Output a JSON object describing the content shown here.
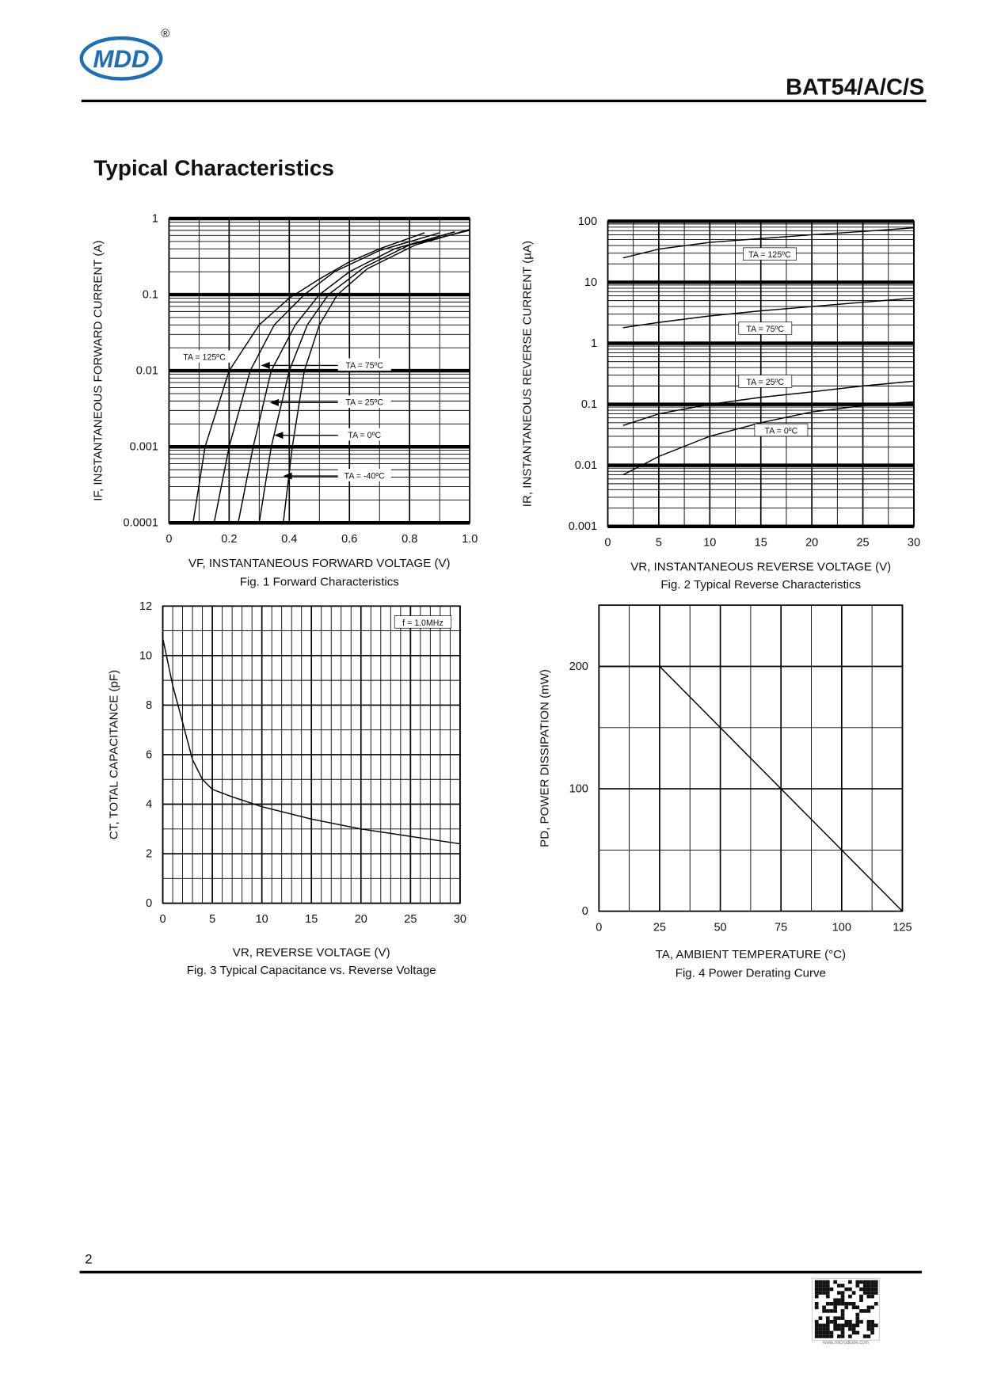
{
  "header": {
    "logo": "MDD",
    "registered": "®",
    "title": "BAT54/A/C/S"
  },
  "section_title": "Typical Characteristics",
  "chart_data": [
    {
      "type": "line",
      "log_y": true,
      "grid": true,
      "ylabel": "IF, INSTANTANEOUS FORWARD CURRENT (A)",
      "xlabel": "VF, INSTANTANEOUS FORWARD VOLTAGE (V)",
      "caption": "Fig. 1  Forward Characteristics",
      "xlim": [
        0,
        1
      ],
      "xticks": [
        0,
        0.2,
        0.4,
        0.6,
        0.8,
        {
          "value": 1,
          "label": "1.0"
        }
      ],
      "ylim": [
        0.0001,
        1
      ],
      "yticks": [
        0.0001,
        0.001,
        0.01,
        0.1,
        1
      ],
      "series": [
        {
          "name": "TA = 125ºC",
          "color": "#000000",
          "x": [
            0.08,
            0.12,
            0.2,
            0.3,
            0.4,
            0.5,
            0.6,
            0.7,
            0.85
          ],
          "values": [
            0.0001,
            0.001,
            0.01,
            0.04,
            0.09,
            0.16,
            0.27,
            0.4,
            0.65
          ]
        },
        {
          "name": "TA = 75ºC",
          "color": "#000000",
          "x": [
            0.15,
            0.2,
            0.27,
            0.35,
            0.45,
            0.55,
            0.7,
            0.9
          ],
          "values": [
            0.0001,
            0.001,
            0.01,
            0.04,
            0.1,
            0.2,
            0.38,
            0.65
          ]
        },
        {
          "name": "TA = 25ºC",
          "color": "#000000",
          "x": [
            0.23,
            0.28,
            0.34,
            0.42,
            0.5,
            0.6,
            0.75,
            0.95
          ],
          "values": [
            0.0001,
            0.001,
            0.01,
            0.04,
            0.1,
            0.2,
            0.4,
            0.67
          ]
        },
        {
          "name": "TA = 0ºC",
          "color": "#000000",
          "x": [
            0.3,
            0.34,
            0.4,
            0.46,
            0.53,
            0.65,
            0.8,
            1.0
          ],
          "values": [
            0.0001,
            0.001,
            0.01,
            0.04,
            0.1,
            0.23,
            0.45,
            0.7
          ]
        },
        {
          "name": "TA = -40ºC",
          "color": "#000000",
          "x": [
            0.38,
            0.41,
            0.45,
            0.5,
            0.56,
            0.66,
            0.82,
            1.0
          ],
          "values": [
            0.0001,
            0.001,
            0.01,
            0.04,
            0.1,
            0.22,
            0.45,
            0.72
          ]
        }
      ]
    },
    {
      "type": "line",
      "log_y": true,
      "grid": true,
      "ylabel": "IR, INSTANTANEOUS REVERSE CURRENT (µA)",
      "xlabel": "VR, INSTANTANEOUS REVERSE VOLTAGE (V)",
      "caption": "Fig. 2  Typical Reverse Characteristics",
      "xlim": [
        0,
        30
      ],
      "xticks": [
        0,
        5,
        10,
        15,
        20,
        25,
        30
      ],
      "ylim": [
        0.001,
        100
      ],
      "yticks": [
        0.001,
        0.01,
        0.1,
        1,
        10,
        100
      ],
      "series": [
        {
          "name": "TA = 125ºC",
          "color": "#000000",
          "x": [
            1.5,
            5,
            10,
            15,
            20,
            25,
            30
          ],
          "values": [
            25,
            35,
            45,
            52,
            60,
            68,
            78
          ]
        },
        {
          "name": "TA = 75ºC",
          "color": "#000000",
          "x": [
            1.5,
            5,
            10,
            15,
            20,
            25,
            30
          ],
          "values": [
            1.8,
            2.2,
            2.8,
            3.4,
            4.0,
            4.7,
            5.5
          ]
        },
        {
          "name": "TA = 25ºC",
          "color": "#000000",
          "x": [
            1.5,
            5,
            10,
            15,
            20,
            25,
            30
          ],
          "values": [
            0.045,
            0.07,
            0.1,
            0.13,
            0.16,
            0.2,
            0.24
          ]
        },
        {
          "name": "TA = 0ºC",
          "color": "#000000",
          "x": [
            1.5,
            5,
            10,
            15,
            20,
            25,
            30
          ],
          "values": [
            0.007,
            0.014,
            0.03,
            0.05,
            0.075,
            0.095,
            0.11
          ]
        }
      ]
    },
    {
      "type": "line",
      "log_y": false,
      "grid": true,
      "ylabel": "CT, TOTAL CAPACITANCE (pF)",
      "xlabel": "VR, REVERSE VOLTAGE (V)",
      "caption": "Fig. 3  Typical Capacitance vs. Reverse Voltage",
      "annotations": [
        "f = 1.0MHz"
      ],
      "xlim": [
        0,
        30
      ],
      "xticks": [
        0,
        5,
        10,
        15,
        20,
        25,
        30
      ],
      "ylim": [
        0,
        12
      ],
      "yticks": [
        0,
        2,
        4,
        6,
        8,
        10,
        12
      ],
      "series": [
        {
          "color": "#000000",
          "x": [
            0,
            1,
            2,
            3,
            4,
            5,
            7,
            10,
            15,
            20,
            25,
            30
          ],
          "values": [
            10.7,
            8.8,
            7.3,
            5.8,
            5.0,
            4.6,
            4.3,
            3.9,
            3.4,
            3.0,
            2.7,
            2.4
          ]
        }
      ]
    },
    {
      "type": "line",
      "log_y": false,
      "grid": true,
      "ylabel": "PD, POWER DISSIPATION (mW)",
      "xlabel": "TA,  AMBIENT TEMPERATURE (°C)",
      "caption": "Fig. 4  Power Derating Curve",
      "xlim": [
        0,
        125
      ],
      "xticks": [
        0,
        25,
        50,
        75,
        100,
        125
      ],
      "ylim": [
        0,
        250
      ],
      "yticks": [
        0,
        100,
        200
      ],
      "series": [
        {
          "color": "#000000",
          "x": [
            0,
            25,
            125
          ],
          "values": [
            200,
            200,
            0
          ]
        }
      ]
    }
  ],
  "footer": {
    "page": "2",
    "qr_caption": "www.microdiode.com"
  }
}
